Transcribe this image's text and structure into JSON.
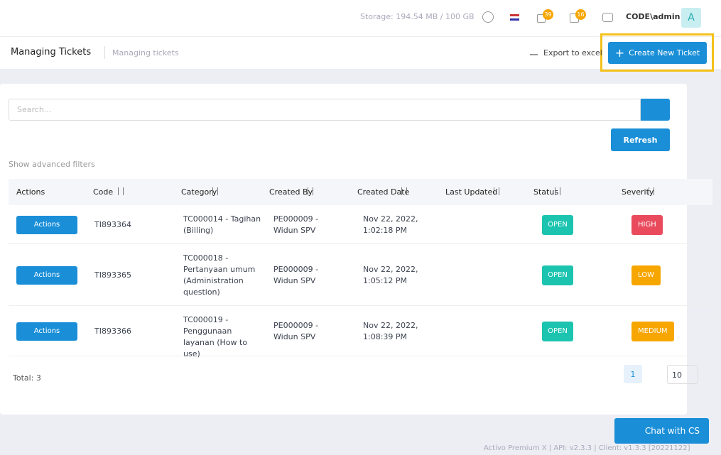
{
  "topbar": {
    "storage": "Storage: 194.54 MB / 100 GB",
    "notifications": 39,
    "messages": 16,
    "user": "CODE\\admin",
    "avatar": "A"
  },
  "header": {
    "title": "Managing Tickets",
    "breadcrumb": "Managing tickets",
    "export": "Export to excel",
    "create": "Create New Ticket"
  },
  "search": {
    "placeholder": "Search...",
    "refresh": "Refresh",
    "advanced": "Show advanced filters"
  },
  "table": {
    "columns": [
      "Actions",
      "Code",
      "Category",
      "Created By",
      "Created Date",
      "Last Updated",
      "Status",
      "Severity"
    ],
    "action_label": "Actions",
    "rows": [
      {
        "code": "TI893364",
        "category": "TC000014 - Tagihan (Billing)",
        "created_by": "PE000009 - Widun SPV",
        "created_date": "Nov 22, 2022, 1:02:18 PM",
        "status": "OPEN",
        "severity": "HIGH",
        "severity_color": "#e94b5d"
      },
      {
        "code": "TI893365",
        "category": "TC000018 - Pertanyaan umum (Administration question)",
        "created_by": "PE000009 - Widun SPV",
        "created_date": "Nov 22, 2022, 1:05:12 PM",
        "status": "OPEN",
        "severity": "LOW",
        "severity_color": "#f7a600"
      },
      {
        "code": "TI893366",
        "category": "TC000019 - Penggunaan layanan (How to use)",
        "created_by": "PE000009 - Widun SPV",
        "created_date": "Nov 22, 2022, 1:08:39 PM",
        "status": "OPEN",
        "severity": "MEDIUM",
        "severity_color": "#f7a600"
      }
    ]
  },
  "footer": {
    "total": "Total: 3",
    "page": "1",
    "page_size": "10"
  },
  "chat": "Chat with CS",
  "version": "Activo Premium X | API: v2.3.3 | Client: v1.3.3 [20221122]"
}
